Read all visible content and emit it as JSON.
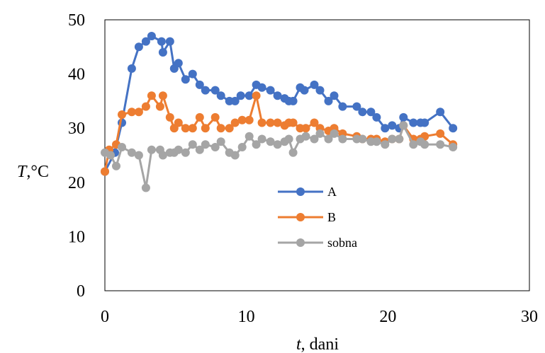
{
  "chart_data": {
    "type": "line",
    "xlabel": {
      "var": "t",
      "rest": ", dani"
    },
    "ylabel": {
      "var": "T",
      "rest": ",°C"
    },
    "xlim": [
      0,
      30
    ],
    "ylim": [
      0,
      50
    ],
    "xticks": [
      "0",
      "10",
      "20",
      "30"
    ],
    "yticks": [
      "0",
      "10",
      "20",
      "30",
      "40",
      "50"
    ],
    "grid": false,
    "legend_position": "center",
    "series": [
      {
        "name": "A",
        "color": "#4472C4",
        "points": [
          [
            0,
            22
          ],
          [
            0.7,
            25.5
          ],
          [
            1.2,
            31
          ],
          [
            1.9,
            41
          ],
          [
            2.4,
            45
          ],
          [
            2.9,
            46
          ],
          [
            3.3,
            47
          ],
          [
            4,
            46
          ],
          [
            4.1,
            44
          ],
          [
            4.6,
            46
          ],
          [
            4.9,
            41
          ],
          [
            5.2,
            42
          ],
          [
            5.7,
            39
          ],
          [
            6.2,
            40
          ],
          [
            6.7,
            38
          ],
          [
            7.1,
            37
          ],
          [
            7.8,
            37
          ],
          [
            8.2,
            36
          ],
          [
            8.8,
            35
          ],
          [
            9.2,
            35
          ],
          [
            9.6,
            36
          ],
          [
            10.2,
            36
          ],
          [
            10.7,
            38
          ],
          [
            11.1,
            37.5
          ],
          [
            11.7,
            37
          ],
          [
            12.2,
            36
          ],
          [
            12.7,
            35.5
          ],
          [
            13,
            35
          ],
          [
            13.3,
            35
          ],
          [
            13.8,
            37.5
          ],
          [
            14.1,
            37
          ],
          [
            14.8,
            38
          ],
          [
            15.2,
            37
          ],
          [
            15.8,
            35
          ],
          [
            16.2,
            36
          ],
          [
            16.8,
            34
          ],
          [
            17.8,
            34
          ],
          [
            18.2,
            33
          ],
          [
            18.8,
            33
          ],
          [
            19.2,
            32
          ],
          [
            19.8,
            30
          ],
          [
            20.3,
            30.5
          ],
          [
            20.8,
            30
          ],
          [
            21.1,
            32
          ],
          [
            21.8,
            31
          ],
          [
            22.3,
            31
          ],
          [
            22.6,
            31
          ],
          [
            23.7,
            33
          ],
          [
            24.6,
            30
          ]
        ]
      },
      {
        "name": "B",
        "color": "#ED7D31",
        "points": [
          [
            0,
            22
          ],
          [
            0.3,
            26
          ],
          [
            0.8,
            27
          ],
          [
            1.2,
            32.5
          ],
          [
            1.9,
            33
          ],
          [
            2.4,
            33
          ],
          [
            2.9,
            34
          ],
          [
            3.3,
            36
          ],
          [
            3.9,
            34
          ],
          [
            4.1,
            36
          ],
          [
            4.6,
            32
          ],
          [
            4.9,
            30
          ],
          [
            5.2,
            31
          ],
          [
            5.7,
            30
          ],
          [
            6.2,
            30
          ],
          [
            6.7,
            32
          ],
          [
            7.1,
            30
          ],
          [
            7.8,
            32
          ],
          [
            8.2,
            30
          ],
          [
            8.8,
            30
          ],
          [
            9.2,
            31
          ],
          [
            9.7,
            31.5
          ],
          [
            10.2,
            31.5
          ],
          [
            10.7,
            36
          ],
          [
            11.1,
            31
          ],
          [
            11.7,
            31
          ],
          [
            12.2,
            31
          ],
          [
            12.7,
            30.5
          ],
          [
            13,
            31
          ],
          [
            13.3,
            31
          ],
          [
            13.8,
            30
          ],
          [
            14.2,
            30
          ],
          [
            14.8,
            31
          ],
          [
            15.2,
            30
          ],
          [
            15.8,
            29.5
          ],
          [
            16.2,
            30
          ],
          [
            16.8,
            29
          ],
          [
            17.8,
            28.5
          ],
          [
            18.2,
            28
          ],
          [
            18.8,
            28
          ],
          [
            19.2,
            28
          ],
          [
            19.8,
            27.5
          ],
          [
            20.3,
            28
          ],
          [
            20.8,
            28
          ],
          [
            21.1,
            30.5
          ],
          [
            21.8,
            28
          ],
          [
            22.3,
            28
          ],
          [
            22.6,
            28.5
          ],
          [
            23.7,
            29
          ],
          [
            24.6,
            27
          ]
        ]
      },
      {
        "name": "sobna",
        "color": "#A5A5A5",
        "points": [
          [
            0,
            25.5
          ],
          [
            0.4,
            25
          ],
          [
            0.8,
            23
          ],
          [
            1.2,
            26.5
          ],
          [
            1.9,
            25.5
          ],
          [
            2.4,
            25
          ],
          [
            2.9,
            19
          ],
          [
            3.3,
            26
          ],
          [
            3.9,
            26
          ],
          [
            4.1,
            25
          ],
          [
            4.6,
            25.5
          ],
          [
            4.9,
            25.5
          ],
          [
            5.2,
            26
          ],
          [
            5.7,
            25.5
          ],
          [
            6.2,
            27
          ],
          [
            6.7,
            26
          ],
          [
            7.1,
            27
          ],
          [
            7.8,
            26.5
          ],
          [
            8.2,
            27.5
          ],
          [
            8.8,
            25.5
          ],
          [
            9.2,
            25
          ],
          [
            9.7,
            26.5
          ],
          [
            10.2,
            28.5
          ],
          [
            10.7,
            27
          ],
          [
            11.1,
            28
          ],
          [
            11.7,
            27.5
          ],
          [
            12.2,
            27
          ],
          [
            12.7,
            27.5
          ],
          [
            13,
            28
          ],
          [
            13.3,
            25.5
          ],
          [
            13.8,
            28
          ],
          [
            14.2,
            28.5
          ],
          [
            14.8,
            28
          ],
          [
            15.2,
            29
          ],
          [
            15.8,
            28
          ],
          [
            16.2,
            29
          ],
          [
            16.8,
            28
          ],
          [
            17.8,
            28
          ],
          [
            18.2,
            28
          ],
          [
            18.8,
            27.5
          ],
          [
            19.2,
            27.5
          ],
          [
            19.8,
            27
          ],
          [
            20.3,
            28
          ],
          [
            20.8,
            28
          ],
          [
            21.1,
            30.5
          ],
          [
            21.8,
            27
          ],
          [
            22.3,
            27.5
          ],
          [
            22.6,
            27
          ],
          [
            23.7,
            27
          ],
          [
            24.6,
            26.5
          ]
        ]
      }
    ]
  }
}
